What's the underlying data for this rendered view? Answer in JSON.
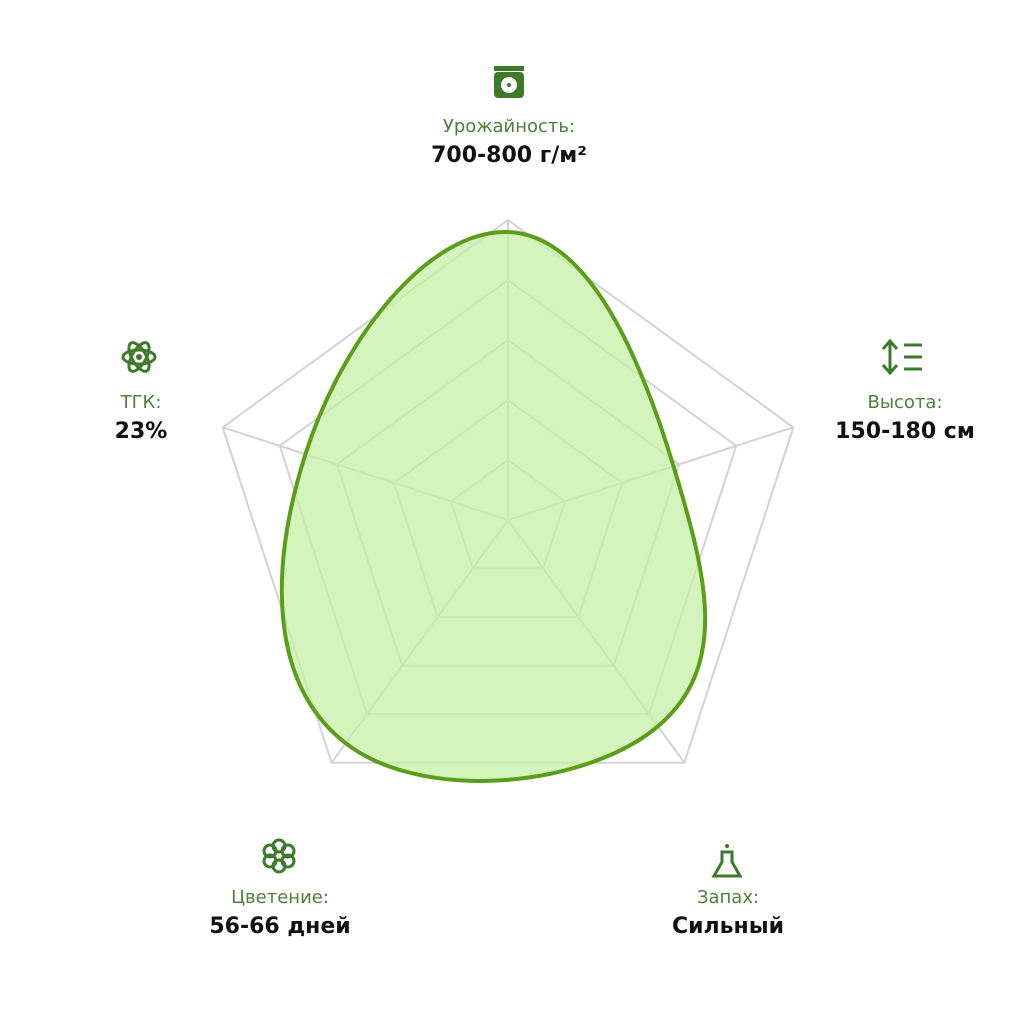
{
  "chart_data": {
    "type": "radar",
    "categories": [
      "Урожайность:",
      "Высота:",
      "Запах:",
      "Цветение:",
      "ТГК:"
    ],
    "category_details": [
      "700-800 г/м²",
      "150-180 см",
      "Сильный",
      "56-66 дней",
      "23%"
    ],
    "values": [
      96,
      58,
      85,
      92,
      71
    ],
    "rlim": [
      0,
      100
    ],
    "rticks": [
      20,
      40,
      60,
      80,
      100
    ],
    "color": "#5a9e1a",
    "fill": "#c6f0a8",
    "grid_color": "#d3d3d3"
  }
}
